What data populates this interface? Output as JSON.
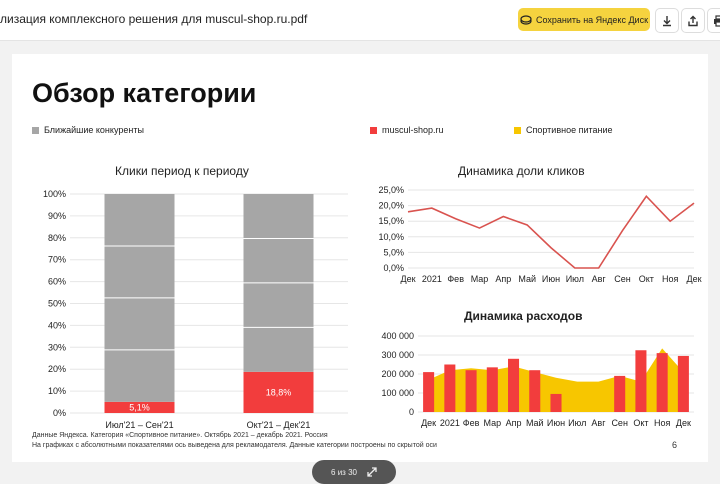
{
  "viewer": {
    "title": "лизация комплексного решения для muscul-shop.ru.pdf",
    "save_label": "Сохранить на Яндекс Диск",
    "pager_text": "6 из 30",
    "colors": {
      "save_button": "#f5d33f"
    }
  },
  "slide": {
    "title": "Обзор категории",
    "legend": {
      "competitors": "Ближайшие конкуренты",
      "site": "muscul-shop.ru",
      "sport": "Спортивное питание"
    },
    "footnote_1": "Данные Яндекса. Категория «Спортивное питание». Октябрь 2021 – декабрь 2021. Россия",
    "footnote_2": "На графиках с абсолютными показателями ось выведена для рекламодателя. Данные категории построены по скрытой оси",
    "page_number": "6"
  },
  "colors": {
    "red": "#f23d3d",
    "yellow": "#f7c600",
    "gray": "#a6a6a6"
  },
  "chart_data": [
    {
      "type": "bar",
      "title": "Клики период к периоду",
      "categories": [
        "Июл'21 – Сен'21",
        "Окт'21 – Дек'21"
      ],
      "series": [
        {
          "name": "muscul-shop.ru",
          "values": [
            5.1,
            18.8
          ],
          "labels": [
            "5,1%",
            "18,8%"
          ]
        },
        {
          "name": "Ближайшие конкуренты",
          "values": [
            94.9,
            81.2
          ]
        }
      ],
      "yticks": [
        "0%",
        "10%",
        "20%",
        "30%",
        "40%",
        "50%",
        "60%",
        "70%",
        "80%",
        "90%",
        "100%"
      ],
      "ylim": [
        0,
        100
      ],
      "stacked": true
    },
    {
      "type": "line",
      "title": "Динамика доли кликов",
      "x": [
        "Дек",
        "2021",
        "Фев",
        "Мар",
        "Апр",
        "Май",
        "Июн",
        "Июл",
        "Авг",
        "Сен",
        "Окт",
        "Ноя",
        "Дек"
      ],
      "series": [
        {
          "name": "muscul-shop.ru",
          "values": [
            18.0,
            19.2,
            15.8,
            12.8,
            16.5,
            13.8,
            6.5,
            0.0,
            0.0,
            12.0,
            23.0,
            15.0,
            20.8
          ]
        }
      ],
      "yticks": [
        "0,0%",
        "5,0%",
        "10,0%",
        "15,0%",
        "20,0%",
        "25,0%"
      ],
      "ylim": [
        0,
        25
      ]
    },
    {
      "type": "bar",
      "title": "Динамика расходов",
      "x": [
        "Дек",
        "2021",
        "Фев",
        "Мар",
        "Апр",
        "Май",
        "Июн",
        "Июл",
        "Авг",
        "Сен",
        "Окт",
        "Ноя",
        "Дек"
      ],
      "series": [
        {
          "name": "muscul-shop.ru",
          "kind": "bar",
          "values": [
            210000,
            250000,
            220000,
            235000,
            280000,
            220000,
            95000,
            0,
            0,
            190000,
            325000,
            310000,
            295000
          ]
        },
        {
          "name": "Спортивное питание",
          "kind": "area",
          "values": [
            170000,
            220000,
            230000,
            220000,
            240000,
            210000,
            180000,
            160000,
            160000,
            190000,
            160000,
            335000,
            210000
          ]
        }
      ],
      "yticks": [
        "0",
        "100 000",
        "200 000",
        "300 000",
        "400 000"
      ],
      "ylim": [
        0,
        400000
      ]
    }
  ]
}
